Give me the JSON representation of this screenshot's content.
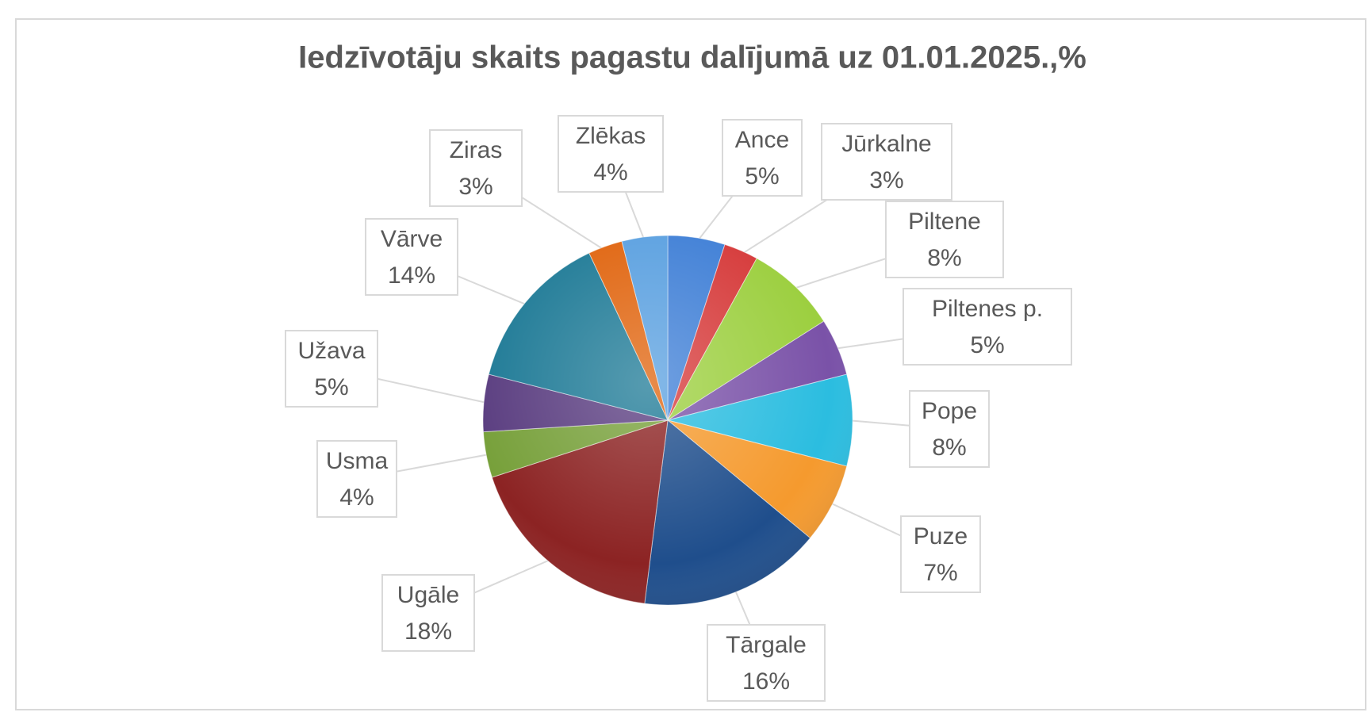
{
  "chart_data": {
    "type": "pie",
    "title": "Iedzīvotāju skaits pagastu dalījumā uz 01.01.2025.,%",
    "categories": [
      "Ance",
      "Jūrkalne",
      "Piltene",
      "Piltenes p.",
      "Pope",
      "Puze",
      "Tārgale",
      "Ugāle",
      "Usma",
      "Užava",
      "Vārve",
      "Ziras",
      "Zlēkas"
    ],
    "values": [
      5,
      3,
      8,
      5,
      8,
      7,
      16,
      18,
      4,
      5,
      14,
      3,
      4
    ],
    "value_labels": [
      "5%",
      "3%",
      "8%",
      "5%",
      "8%",
      "7%",
      "16%",
      "18%",
      "4%",
      "5%",
      "14%",
      "3%",
      "4%"
    ],
    "colors": [
      "#3f7fd6",
      "#d63a3a",
      "#9ccf3f",
      "#7a52a8",
      "#2bbde0",
      "#f59a2e",
      "#1f4e8c",
      "#8c2323",
      "#77a03a",
      "#5a3d80",
      "#1e7a96",
      "#e0640e",
      "#5aa0e0"
    ]
  }
}
